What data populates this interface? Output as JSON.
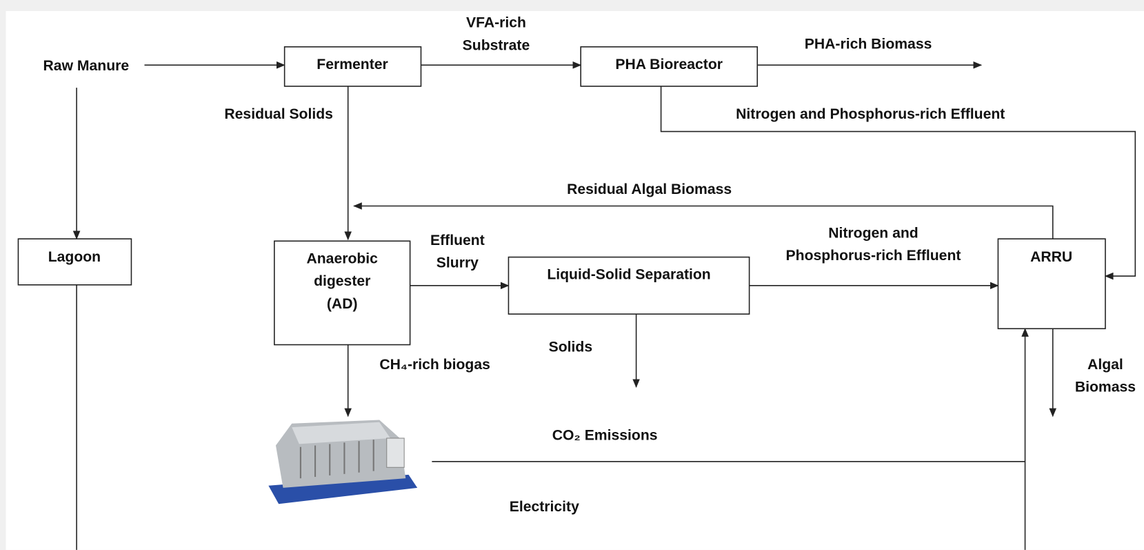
{
  "nodes": [
    {
      "label": [
        "Raw Manure"
      ]
    },
    {
      "label": [
        "Fermenter"
      ]
    },
    {
      "label": [
        "PHA Bioreactor"
      ]
    },
    {
      "label": [
        "Lagoon"
      ]
    },
    {
      "label": [
        "Anaerobic",
        "digester",
        "(AD)"
      ]
    },
    {
      "label": [
        "Liquid-Solid  Separation"
      ]
    },
    {
      "label": [
        "ARRU"
      ]
    }
  ],
  "edges": [
    {
      "label": [
        "VFA-rich",
        "Substrate"
      ]
    },
    {
      "label": [
        "PHA-rich Biomass"
      ]
    },
    {
      "label": [
        "Residual Solids"
      ]
    },
    {
      "label": [
        "Nitrogen and Phosphorus-rich  Effluent"
      ]
    },
    {
      "label": [
        "Residual Algal Biomass"
      ]
    },
    {
      "label": [
        "Effluent",
        "Slurry"
      ]
    },
    {
      "label": [
        "Nitrogen and",
        "Phosphorus-rich Effluent"
      ]
    },
    {
      "label": [
        "Solids"
      ]
    },
    {
      "label": [
        "CH₄-rich biogas"
      ]
    },
    {
      "label": [
        "Algal",
        "Biomass"
      ]
    },
    {
      "label": [
        "CO₂ Emissions"
      ]
    },
    {
      "label": [
        "Electricity"
      ]
    }
  ]
}
